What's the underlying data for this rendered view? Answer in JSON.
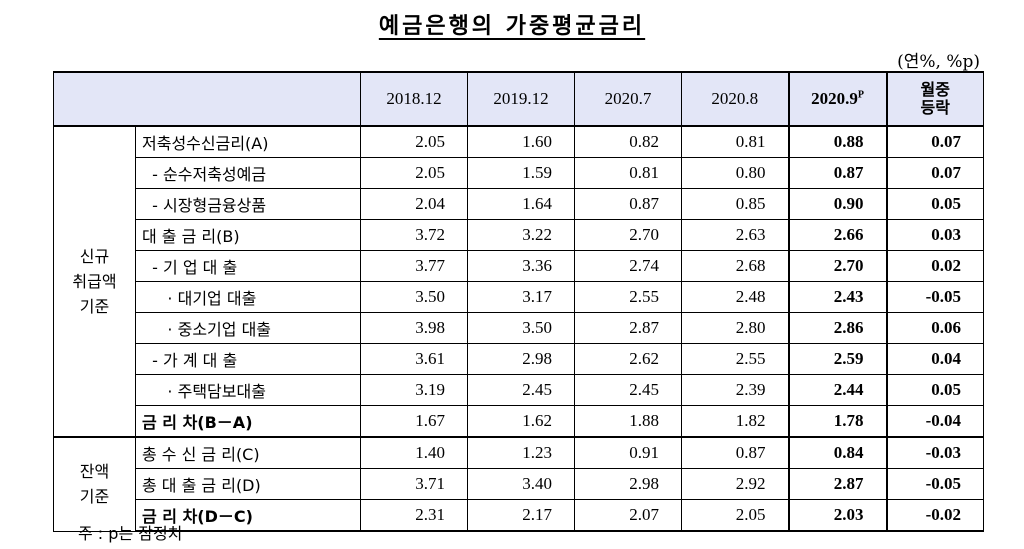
{
  "title": "예금은행의 가중평균금리",
  "unit": "(연%, %p)",
  "header": {
    "cols": [
      "2018.12",
      "2019.12",
      "2020.7",
      "2020.8"
    ],
    "current_base": "2020.9",
    "current_sup": "P",
    "mom_line1": "월중",
    "mom_line2": "등락"
  },
  "groups": {
    "new": [
      "신규",
      "취급액",
      "기준"
    ],
    "balance": [
      "잔액",
      "기준"
    ]
  },
  "rows": [
    {
      "label": "저축성수신금리(A)",
      "v": [
        "2.05",
        "1.60",
        "0.82",
        "0.81",
        "0.88",
        "0.07"
      ]
    },
    {
      "label": "  - 순수저축성예금",
      "v": [
        "2.05",
        "1.59",
        "0.81",
        "0.80",
        "0.87",
        "0.07"
      ]
    },
    {
      "label": "  - 시장형금융상품",
      "v": [
        "2.04",
        "1.64",
        "0.87",
        "0.85",
        "0.90",
        "0.05"
      ]
    },
    {
      "label": "대 출 금 리(B)",
      "v": [
        "3.72",
        "3.22",
        "2.70",
        "2.63",
        "2.66",
        "0.03"
      ]
    },
    {
      "label": "  - 기 업 대 출",
      "v": [
        "3.77",
        "3.36",
        "2.74",
        "2.68",
        "2.70",
        "0.02"
      ]
    },
    {
      "label": "     · 대기업 대출",
      "v": [
        "3.50",
        "3.17",
        "2.55",
        "2.48",
        "2.43",
        "-0.05"
      ]
    },
    {
      "label": "     · 중소기업 대출",
      "v": [
        "3.98",
        "3.50",
        "2.87",
        "2.80",
        "2.86",
        "0.06"
      ]
    },
    {
      "label": "  - 가 계 대 출",
      "v": [
        "3.61",
        "2.98",
        "2.62",
        "2.55",
        "2.59",
        "0.04"
      ]
    },
    {
      "label": "     · 주택담보대출",
      "v": [
        "3.19",
        "2.45",
        "2.45",
        "2.39",
        "2.44",
        "0.05"
      ]
    },
    {
      "label": "금 리 차(B－A)",
      "v": [
        "1.67",
        "1.62",
        "1.88",
        "1.82",
        "1.78",
        "-0.04"
      ]
    },
    {
      "label": "총 수 신 금 리(C)",
      "v": [
        "1.40",
        "1.23",
        "0.91",
        "0.87",
        "0.84",
        "-0.03"
      ]
    },
    {
      "label": "총 대 출 금 리(D)",
      "v": [
        "3.71",
        "3.40",
        "2.98",
        "2.92",
        "2.87",
        "-0.05"
      ]
    },
    {
      "label": "금 리 차(D－C)",
      "v": [
        "2.31",
        "2.17",
        "2.07",
        "2.05",
        "2.03",
        "-0.02"
      ]
    }
  ],
  "note": "주 : p는 잠정치"
}
